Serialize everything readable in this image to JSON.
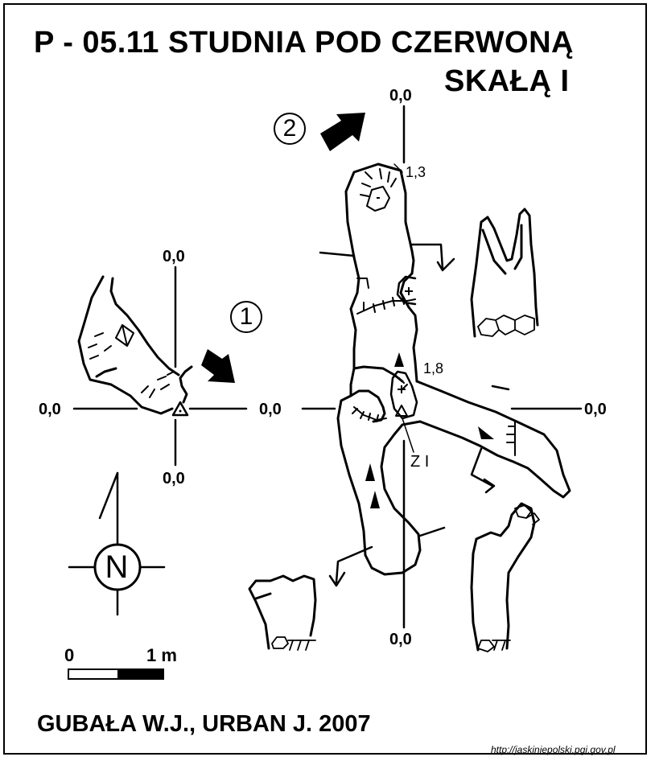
{
  "title": {
    "line1": "P - 05.11  STUDNIA POD CZERWONĄ",
    "line2": "SKAŁĄ  I"
  },
  "authors": "GUBAŁA W.J., URBAN J. 2007",
  "source_url": "http://jaskiniepolski.pgi.gov.pl",
  "entrance_labels": {
    "entrance_1": "1",
    "entrance_2": "2"
  },
  "section_labels": {
    "left_top": "0,0",
    "left_left": "0,0",
    "left_right": "0,0",
    "left_bottom": "0,0",
    "right_top": "0,0",
    "right_right": "0,0",
    "right_bottom": "0,0"
  },
  "depths": {
    "upper": "1,3",
    "middle": "1,8"
  },
  "fixed_point": "Z I",
  "slope_signs": {
    "minus": "-",
    "plus_upper": "+",
    "plus_lower": "+"
  },
  "north": "N",
  "scale": {
    "start": "0",
    "end": "1 m",
    "fraction_black": 0.5
  },
  "colors": {
    "ink": "#000000",
    "paper": "#ffffff"
  }
}
